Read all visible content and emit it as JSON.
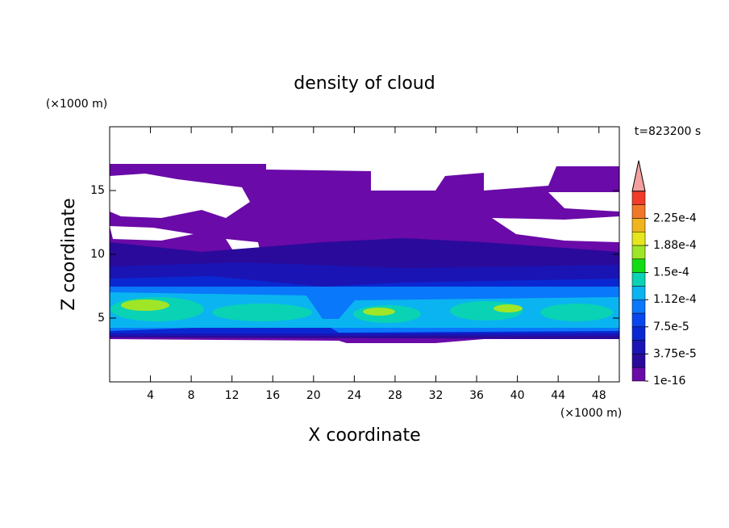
{
  "chart_data": {
    "type": "contour",
    "title": "density of cloud",
    "time_label": "t=823200 s",
    "x_label": "X coordinate",
    "y_label": "Z coordinate",
    "x_unit": "(×1000 m)",
    "y_unit": "(×1000 m)",
    "xlim": [
      0,
      50
    ],
    "ylim": [
      0,
      20
    ],
    "xticks": [
      4,
      8,
      12,
      16,
      20,
      24,
      28,
      32,
      36,
      40,
      44,
      48
    ],
    "yticks": [
      5,
      10,
      15
    ],
    "colorbar": {
      "clim": [
        0,
        0.00024375
      ],
      "ticks": [
        {
          "value": 1e-16,
          "label": "1e-16"
        },
        {
          "value": 3.75e-05,
          "label": "3.75e-5"
        },
        {
          "value": 7.5e-05,
          "label": "7.5e-5"
        },
        {
          "value": 0.0001125,
          "label": "1.12e-4"
        },
        {
          "value": 0.00015,
          "label": "1.5e-4"
        },
        {
          "value": 0.0001875,
          "label": "1.88e-4"
        },
        {
          "value": 0.000225,
          "label": "2.25e-4"
        }
      ],
      "colors": [
        "#6a0aa8",
        "#2a0a9a",
        "#1a14b4",
        "#0a28d2",
        "#0a46ee",
        "#0a78fa",
        "#0ab4f0",
        "#0ad2b4",
        "#14dc14",
        "#a0e628",
        "#e6e61e",
        "#f0b41e",
        "#f07828",
        "#f03c28"
      ],
      "extend_color": "#f4a0a0"
    }
  }
}
